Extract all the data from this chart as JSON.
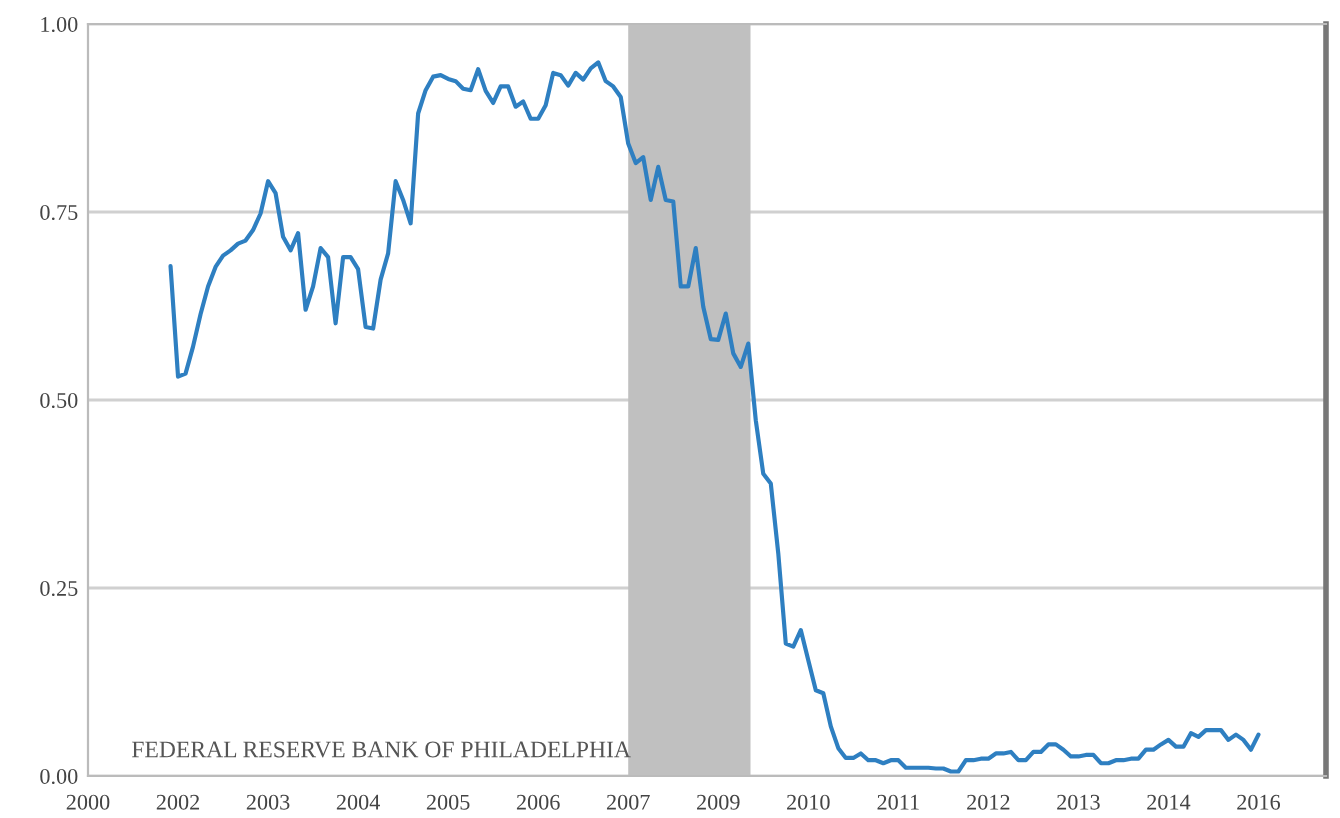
{
  "chart_data": {
    "type": "line",
    "categories": [
      "2000",
      null,
      null,
      null,
      null,
      null,
      null,
      null,
      null,
      null,
      null,
      null,
      "2002",
      null,
      null,
      null,
      null,
      null,
      null,
      null,
      null,
      null,
      null,
      null,
      "2003",
      null,
      null,
      null,
      null,
      null,
      null,
      null,
      null,
      null,
      null,
      null,
      "2004",
      null,
      null,
      null,
      null,
      null,
      null,
      null,
      null,
      null,
      null,
      null,
      "2005",
      null,
      null,
      null,
      null,
      null,
      null,
      null,
      null,
      null,
      null,
      null,
      "2006",
      null,
      null,
      null,
      null,
      null,
      null,
      null,
      null,
      null,
      null,
      null,
      "2007",
      null,
      null,
      null,
      null,
      null,
      null,
      null,
      null,
      null,
      null,
      null,
      "2009",
      null,
      null,
      null,
      null,
      null,
      null,
      null,
      null,
      null,
      null,
      null,
      "2010",
      null,
      null,
      null,
      null,
      null,
      null,
      null,
      null,
      null,
      null,
      null,
      "2011",
      null,
      null,
      null,
      null,
      null,
      null,
      null,
      null,
      null,
      null,
      null,
      "2012",
      null,
      null,
      null,
      null,
      null,
      null,
      null,
      null,
      null,
      null,
      null,
      "2013",
      null,
      null,
      null,
      null,
      null,
      null,
      null,
      null,
      null,
      null,
      null,
      "2014",
      null,
      null,
      null,
      null,
      null,
      null,
      null,
      null,
      null,
      null,
      null,
      "2016",
      null,
      null,
      null,
      null,
      null,
      null,
      null,
      null,
      null
    ],
    "series": [
      {
        "color": "#2e7fc1",
        "values": [
          null,
          null,
          null,
          null,
          null,
          null,
          null,
          null,
          null,
          null,
          null,
          0.678,
          0.531,
          0.535,
          0.571,
          0.614,
          0.651,
          0.677,
          0.692,
          0.699,
          0.708,
          0.712,
          0.726,
          0.748,
          0.791,
          0.775,
          0.717,
          0.699,
          0.722,
          0.62,
          0.651,
          0.702,
          0.69,
          0.602,
          0.69,
          0.69,
          0.674,
          0.597,
          0.595,
          0.66,
          0.695,
          0.791,
          0.766,
          0.735,
          0.881,
          0.912,
          0.93,
          0.932,
          0.927,
          0.924,
          0.914,
          0.912,
          0.94,
          0.911,
          0.895,
          0.917,
          0.917,
          0.89,
          0.897,
          0.874,
          0.874,
          0.892,
          0.935,
          0.932,
          0.918,
          0.935,
          0.926,
          0.941,
          0.949,
          0.924,
          0.917,
          0.903,
          0.841,
          0.815,
          0.823,
          0.766,
          0.81,
          0.766,
          0.764,
          0.651,
          0.651,
          0.702,
          0.624,
          0.581,
          0.58,
          0.615,
          0.562,
          0.544,
          0.575,
          0.473,
          0.402,
          0.389,
          0.296,
          0.176,
          0.172,
          0.194,
          0.154,
          0.114,
          0.11,
          0.066,
          0.037,
          0.024,
          0.024,
          0.03,
          0.021,
          0.021,
          0.017,
          0.021,
          0.021,
          0.011,
          0.011,
          0.011,
          0.011,
          0.01,
          0.01,
          0.006,
          0.006,
          0.021,
          0.021,
          0.023,
          0.023,
          0.03,
          0.03,
          0.032,
          0.021,
          0.021,
          0.032,
          0.032,
          0.042,
          0.042,
          0.035,
          0.026,
          0.026,
          0.028,
          0.028,
          0.017,
          0.017,
          0.021,
          0.021,
          0.023,
          0.023,
          0.035,
          0.035,
          0.042,
          0.048,
          0.039,
          0.039,
          0.057,
          0.052,
          0.061,
          0.061,
          0.061,
          0.048,
          0.055,
          0.048,
          0.035,
          0.055,
          null,
          null,
          null,
          null,
          null,
          null,
          null,
          null,
          null
        ]
      }
    ],
    "ylim": [
      0,
      1
    ],
    "yticks": [
      {
        "value": 0,
        "label": "0.00"
      },
      {
        "value": 0.25,
        "label": "0.25"
      },
      {
        "value": 0.5,
        "label": "0.50"
      },
      {
        "value": 0.75,
        "label": "0.75"
      },
      {
        "value": 1,
        "label": "1.00"
      }
    ],
    "grid": "y",
    "annotations": [
      "FEDERAL RESERVE BANK OF PHILADELPHIA"
    ]
  }
}
